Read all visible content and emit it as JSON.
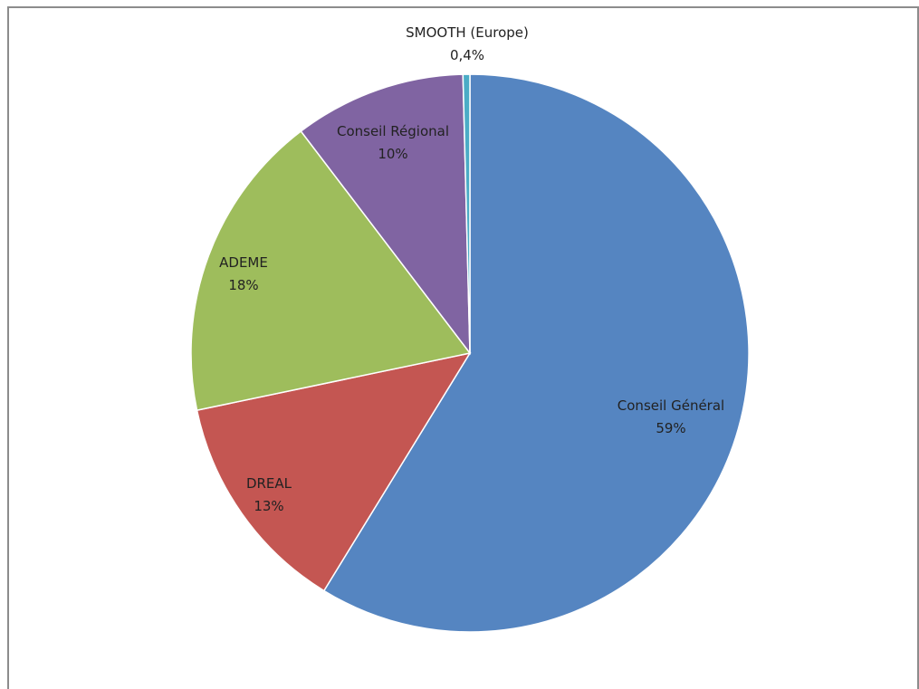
{
  "chart_data": {
    "type": "pie",
    "title": "",
    "start_angle_deg": 0,
    "direction": "clockwise",
    "slices": [
      {
        "label": "Conseil Général",
        "value": 59,
        "value_label": "59%",
        "color": "#5585c1"
      },
      {
        "label": "DREAL",
        "value": 13,
        "value_label": "13%",
        "color": "#c45652"
      },
      {
        "label": "ADEME",
        "value": 18,
        "value_label": "18%",
        "color": "#9ebd5c"
      },
      {
        "label": "Conseil Régional",
        "value": 10,
        "value_label": "10%",
        "color": "#8064a2"
      },
      {
        "label": "SMOOTH (Europe)",
        "value": 0.4,
        "value_label": "0,4%",
        "color": "#4bacc6"
      }
    ]
  }
}
